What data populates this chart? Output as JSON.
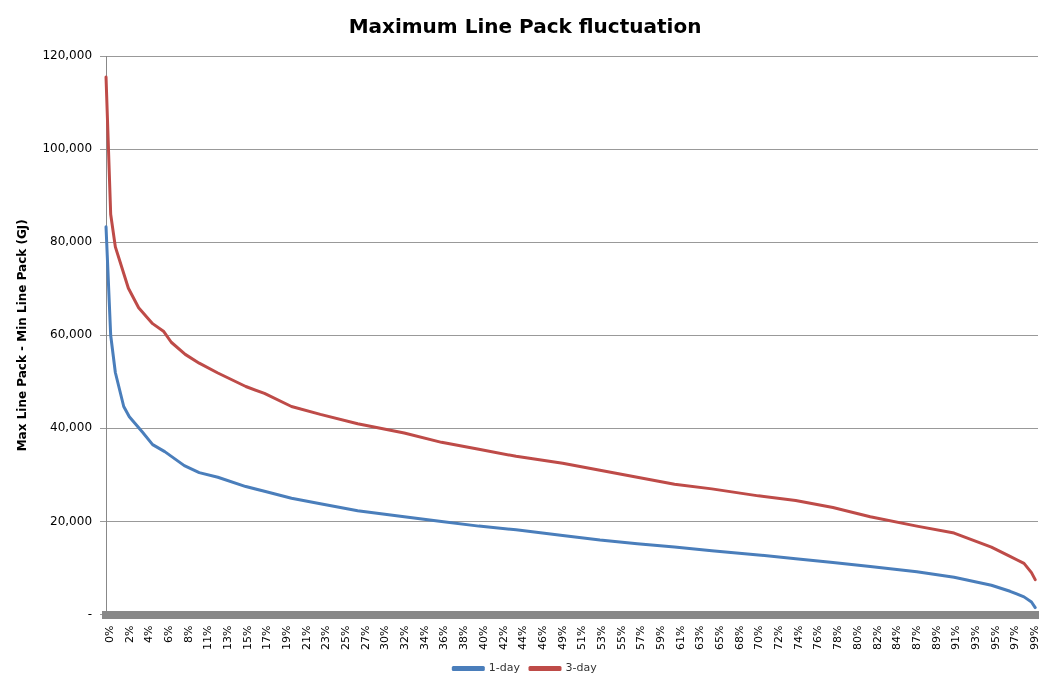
{
  "chart_data": {
    "type": "line",
    "title": "Maximum Line Pack fluctuation",
    "ylabel": "Max Line Pack - Min Line Pack (GJ)",
    "xlim": [
      0,
      100
    ],
    "ylim": [
      0,
      120000
    ],
    "xticks": [
      {
        "value": 0,
        "label": "0%"
      },
      {
        "value": 2.11,
        "label": "2%"
      },
      {
        "value": 4.22,
        "label": "4%"
      },
      {
        "value": 6.34,
        "label": "6%"
      },
      {
        "value": 8.45,
        "label": "8%"
      },
      {
        "value": 10.56,
        "label": "11%"
      },
      {
        "value": 12.67,
        "label": "13%"
      },
      {
        "value": 14.78,
        "label": "15%"
      },
      {
        "value": 16.9,
        "label": "17%"
      },
      {
        "value": 19.01,
        "label": "19%"
      },
      {
        "value": 21.12,
        "label": "21%"
      },
      {
        "value": 23.23,
        "label": "23%"
      },
      {
        "value": 25.34,
        "label": "25%"
      },
      {
        "value": 27.46,
        "label": "27%"
      },
      {
        "value": 29.57,
        "label": "30%"
      },
      {
        "value": 31.68,
        "label": "32%"
      },
      {
        "value": 33.79,
        "label": "34%"
      },
      {
        "value": 35.9,
        "label": "36%"
      },
      {
        "value": 38.02,
        "label": "38%"
      },
      {
        "value": 40.13,
        "label": "40%"
      },
      {
        "value": 42.24,
        "label": "42%"
      },
      {
        "value": 44.35,
        "label": "44%"
      },
      {
        "value": 46.46,
        "label": "46%"
      },
      {
        "value": 48.58,
        "label": "49%"
      },
      {
        "value": 50.69,
        "label": "51%"
      },
      {
        "value": 52.8,
        "label": "53%"
      },
      {
        "value": 54.91,
        "label": "55%"
      },
      {
        "value": 57.02,
        "label": "57%"
      },
      {
        "value": 59.14,
        "label": "59%"
      },
      {
        "value": 61.25,
        "label": "61%"
      },
      {
        "value": 63.36,
        "label": "63%"
      },
      {
        "value": 65.47,
        "label": "65%"
      },
      {
        "value": 67.58,
        "label": "68%"
      },
      {
        "value": 69.7,
        "label": "70%"
      },
      {
        "value": 71.81,
        "label": "72%"
      },
      {
        "value": 73.92,
        "label": "74%"
      },
      {
        "value": 76.03,
        "label": "76%"
      },
      {
        "value": 78.14,
        "label": "78%"
      },
      {
        "value": 80.26,
        "label": "80%"
      },
      {
        "value": 82.37,
        "label": "82%"
      },
      {
        "value": 84.48,
        "label": "84%"
      },
      {
        "value": 86.59,
        "label": "87%"
      },
      {
        "value": 88.7,
        "label": "89%"
      },
      {
        "value": 90.82,
        "label": "91%"
      },
      {
        "value": 92.93,
        "label": "93%"
      },
      {
        "value": 95.04,
        "label": "95%"
      },
      {
        "value": 97.15,
        "label": "97%"
      },
      {
        "value": 99.26,
        "label": "99%"
      }
    ],
    "yticks": [
      {
        "value": 0,
        "label": "-"
      },
      {
        "value": 20000,
        "label": "20,000"
      },
      {
        "value": 40000,
        "label": "40,000"
      },
      {
        "value": 60000,
        "label": "60,000"
      },
      {
        "value": 80000,
        "label": "80,000"
      },
      {
        "value": 100000,
        "label": "100,000"
      },
      {
        "value": 120000,
        "label": "120,000"
      }
    ],
    "grid": "y",
    "legend": "bottom",
    "marker": "none",
    "line_style": "solid",
    "series": [
      {
        "name": "1-day",
        "color": "#4a7ebb",
        "x": [
          0,
          0.5,
          1,
          1.9,
          2.5,
          3.9,
          5,
          6.3,
          8.4,
          10,
          12,
          15,
          17,
          19.9,
          23,
          27,
          32,
          36,
          40,
          44,
          49,
          53,
          57,
          61,
          65,
          70,
          74,
          78,
          82,
          87,
          91,
          95,
          97,
          98.5,
          99.3,
          99.7
        ],
        "values": [
          83300,
          60000,
          52000,
          44700,
          42500,
          39200,
          36500,
          35000,
          32000,
          30500,
          29500,
          27500,
          26500,
          25000,
          23800,
          22300,
          21000,
          20000,
          19000,
          18200,
          17000,
          16000,
          15200,
          14500,
          13700,
          12800,
          12000,
          11200,
          10300,
          9200,
          8000,
          6300,
          5000,
          3800,
          2700,
          1500
        ]
      },
      {
        "name": "3-day",
        "color": "#be4b48",
        "x": [
          0,
          0.5,
          1,
          2.4,
          3.5,
          5,
          6.2,
          7,
          8.5,
          10,
          12,
          15,
          17,
          19.9,
          23,
          27,
          32,
          36,
          40,
          44,
          49,
          53,
          57,
          61,
          65,
          70,
          74,
          78,
          82,
          87,
          91,
          93,
          95,
          97,
          98.5,
          99.3,
          99.7
        ],
        "values": [
          115500,
          86000,
          79000,
          70100,
          65900,
          62500,
          60800,
          58500,
          55900,
          54000,
          51900,
          49000,
          47500,
          44700,
          43000,
          41000,
          39000,
          37000,
          35500,
          34000,
          32500,
          31000,
          29500,
          28000,
          27000,
          25500,
          24500,
          23000,
          21000,
          19000,
          17500,
          16000,
          14500,
          12500,
          11000,
          9000,
          7500
        ]
      }
    ]
  }
}
